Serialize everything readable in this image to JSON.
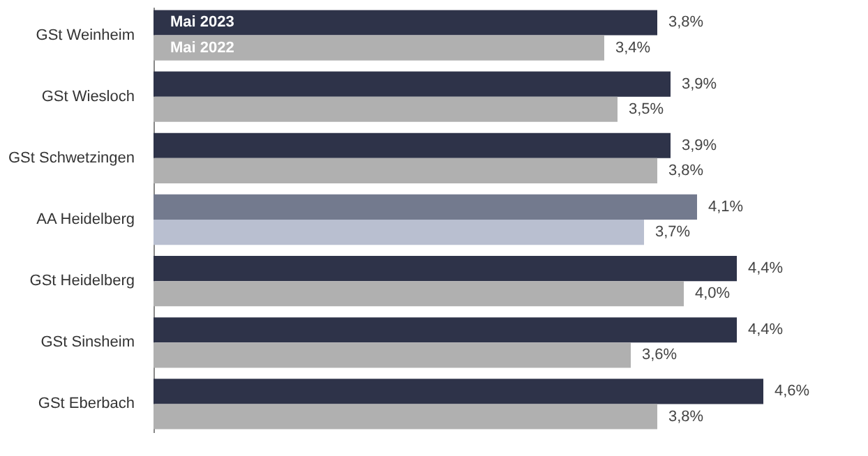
{
  "chart_data": {
    "type": "bar",
    "orientation": "horizontal",
    "categories": [
      "GSt Weinheim",
      "GSt Wiesloch",
      "GSt Schwetzingen",
      "AA Heidelberg",
      "GSt Heidelberg",
      "GSt Sinsheim",
      "GSt Eberbach"
    ],
    "series": [
      {
        "name": "Mai 2023",
        "values": [
          3.8,
          3.9,
          3.9,
          4.1,
          4.4,
          4.4,
          4.6
        ],
        "colors": [
          "#2e3349",
          "#2e3349",
          "#2e3349",
          "#737a8e",
          "#2e3349",
          "#2e3349",
          "#2e3349"
        ],
        "value_labels": [
          "3,8%",
          "3,9%",
          "3,9%",
          "4,1%",
          "4,4%",
          "4,4%",
          "4,6%"
        ]
      },
      {
        "name": "Mai 2022",
        "values": [
          3.4,
          3.5,
          3.8,
          3.7,
          4.0,
          3.6,
          3.8
        ],
        "colors": [
          "#b0b0b0",
          "#b0b0b0",
          "#b0b0b0",
          "#b9bfd0",
          "#b0b0b0",
          "#b0b0b0",
          "#b0b0b0"
        ],
        "value_labels": [
          "3,4%",
          "3,5%",
          "3,8%",
          "3,7%",
          "4,0%",
          "3,6%",
          "3,8%"
        ]
      }
    ],
    "tick_labels": "y",
    "legend": "top left"
  }
}
